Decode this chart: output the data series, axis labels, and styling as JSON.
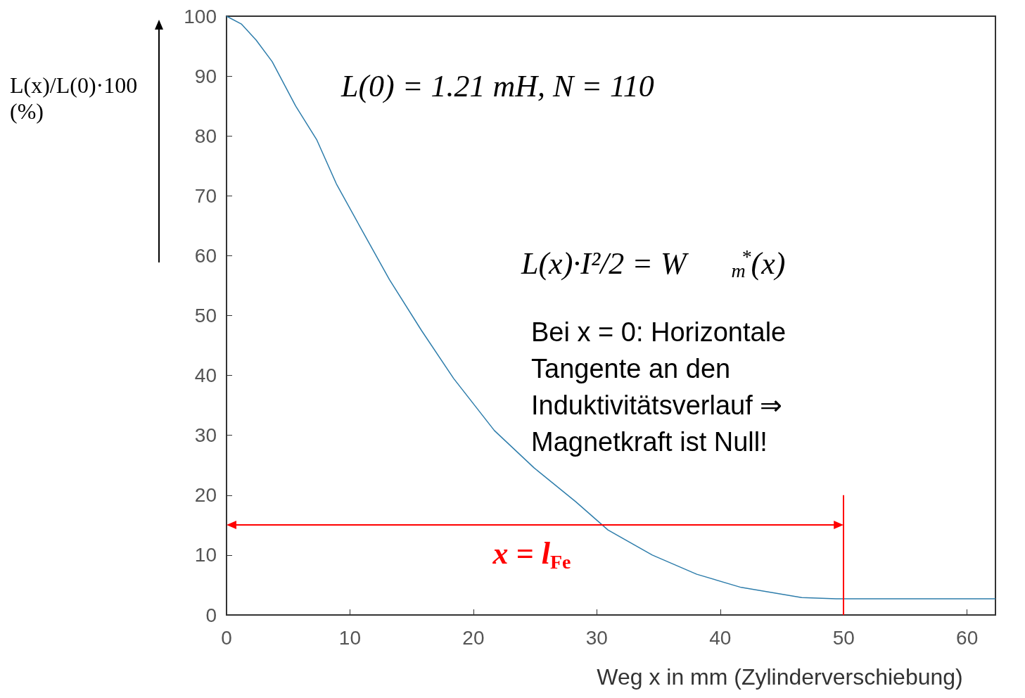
{
  "chart_data": {
    "type": "line",
    "ylabel": "L(x)/L(0)·100 (%)",
    "xlabel": "Weg x in mm (Zylinderverschiebung)",
    "x": [
      0,
      1.2,
      2.4,
      3.7,
      5.6,
      7.3,
      8.9,
      11.2,
      13.2,
      15.8,
      18.4,
      21.7,
      24.9,
      28.3,
      30.9,
      34.5,
      38.1,
      41.7,
      46.6,
      49.4,
      62.3
    ],
    "series": [
      {
        "color": "#2e7dab",
        "values": [
          100,
          98.7,
          96,
          92.4,
          85,
          79.4,
          72,
          63.4,
          56,
          47.5,
          39.5,
          30.8,
          24.6,
          18.9,
          14.2,
          10,
          6.8,
          4.6,
          2.9,
          2.7,
          2.7
        ]
      }
    ],
    "xlim": [
      0,
      62.3
    ],
    "ylim": [
      0,
      100
    ],
    "xticks": [
      0,
      10,
      20,
      30,
      40,
      50,
      60
    ],
    "yticks": [
      0,
      10,
      20,
      30,
      40,
      50,
      60,
      70,
      80,
      90,
      100
    ],
    "grid": false,
    "marker": "none",
    "line_style": "solid",
    "ref_lines": [
      {
        "axis": "x",
        "value": 50,
        "color": "#ff0000"
      }
    ],
    "annotations": [
      "L(0) = 1.21 mH, N = 110",
      "L(x)·I²/2 = W$_{m}$$^{*}$(x)",
      "Bei x = 0: Horizontale Tangente an den Induktivitätsverlauf ⇒ Magnetkraft ist Null!",
      "x = l$_{Fe}$"
    ]
  }
}
